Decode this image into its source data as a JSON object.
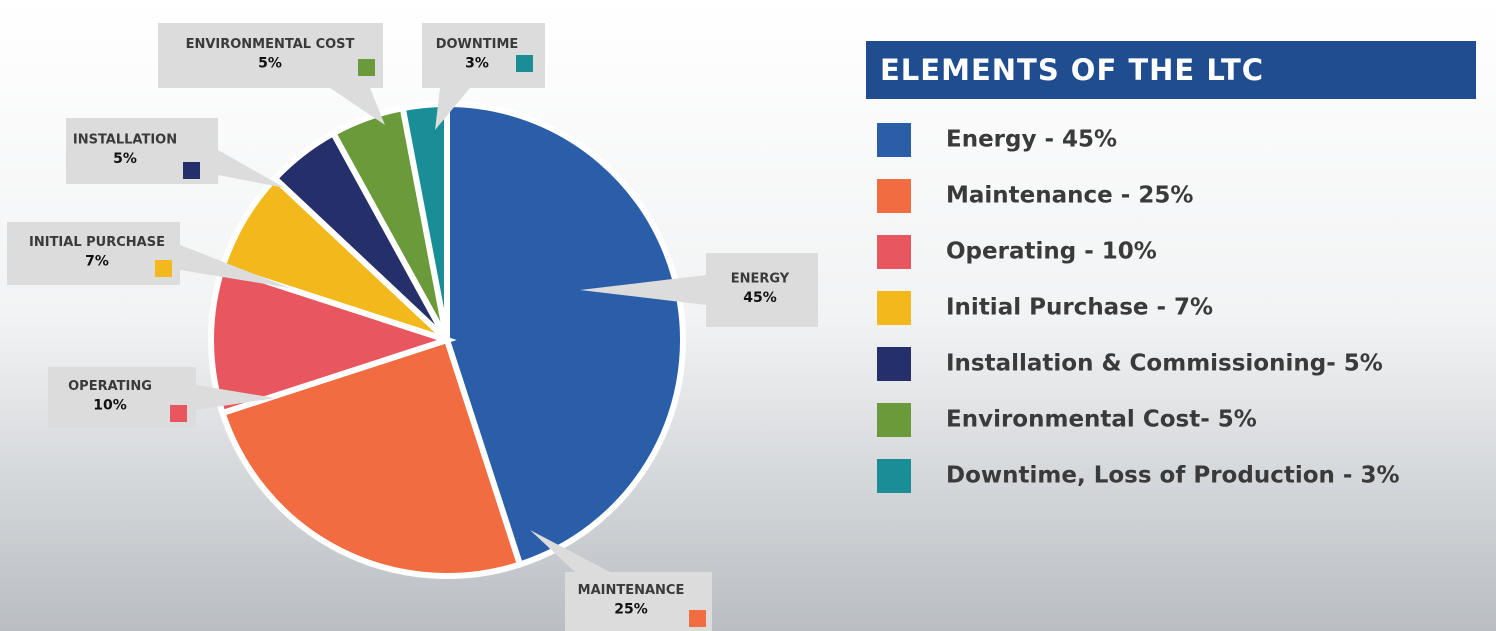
{
  "chart_data": {
    "type": "pie",
    "title": "ELEMENTS OF THE LTC",
    "categories": [
      "ENERGY",
      "MAINTENANCE",
      "OPERATING",
      "INITIAL PURCHASE",
      "INSTALLATION",
      "ENVIRONMENTAL COST",
      "DOWNTIME"
    ],
    "values": [
      45,
      25,
      10,
      7,
      5,
      5,
      3
    ],
    "value_labels": [
      "45%",
      "25%",
      "10%",
      "7%",
      "5%",
      "5%",
      "3%"
    ],
    "colors": [
      "#2b5ea8",
      "#f26c41",
      "#e8565f",
      "#f2b81c",
      "#25306b",
      "#6a9a3a",
      "#1a8e96"
    ],
    "legend": [
      "Energy - 45%",
      "Maintenance - 25%",
      "Operating - 10%",
      "Initial Purchase - 7%",
      "Installation & Commissioning- 5%",
      "Environmental Cost- 5%",
      "Downtime, Loss of Production - 3%"
    ]
  }
}
